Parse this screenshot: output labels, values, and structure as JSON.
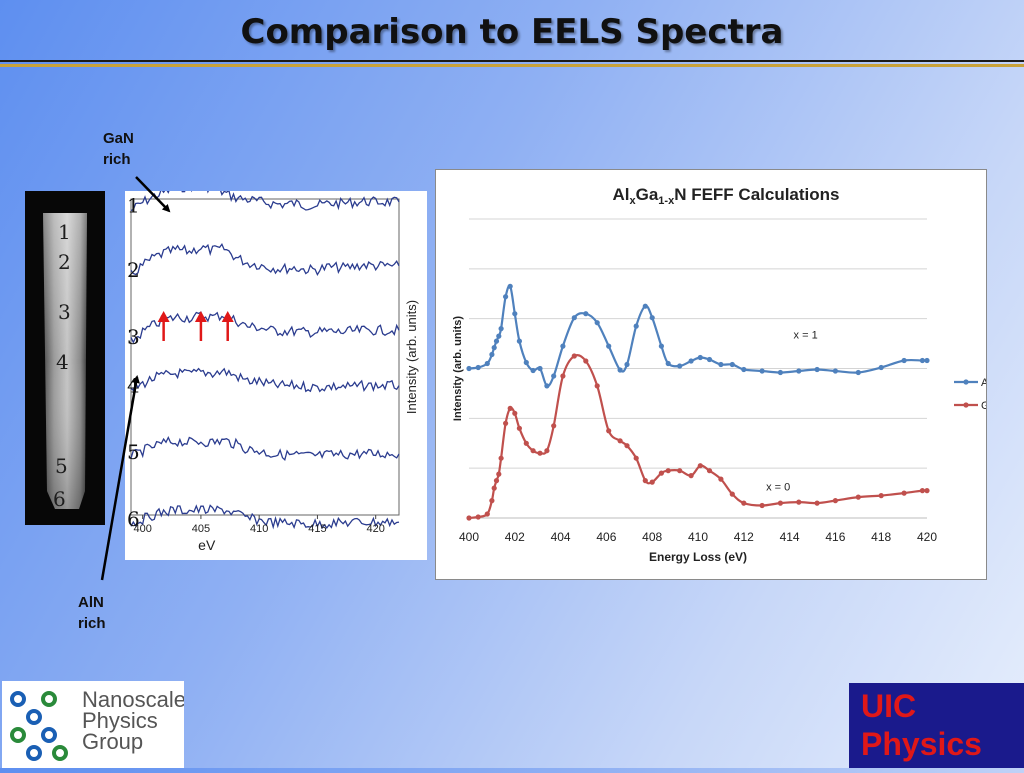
{
  "slide": {
    "title": "Comparison to EELS Spectra",
    "annotations": {
      "gan_rich": [
        "GaN",
        "rich"
      ],
      "aln_rich": [
        "AlN",
        "rich"
      ]
    }
  },
  "stem_image": {
    "region_labels": [
      "1",
      "2",
      "3",
      "4",
      "5",
      "6"
    ]
  },
  "chart_data": [
    {
      "type": "line",
      "title": "",
      "xlabel": "eV",
      "ylabel": "Intensity (arb. units)",
      "xlim": [
        399,
        422
      ],
      "x_ticks": [
        400,
        405,
        410,
        415,
        420
      ],
      "series": [
        {
          "name": "1",
          "x": [
            399,
            400,
            401,
            402,
            403,
            404,
            405,
            406,
            407,
            408,
            409,
            410,
            411,
            412,
            413,
            414,
            415,
            416,
            417,
            418,
            419,
            420,
            421,
            422
          ],
          "values": [
            0.55,
            0.72,
            0.85,
            0.95,
            1.02,
            1.06,
            1.08,
            1.02,
            0.92,
            0.82,
            0.78,
            0.74,
            0.7,
            0.68,
            0.7,
            0.66,
            0.66,
            0.7,
            0.7,
            0.72,
            0.74,
            0.73,
            0.73,
            0.73
          ]
        },
        {
          "name": "2",
          "x": [
            399,
            400,
            401,
            402,
            403,
            404,
            405,
            406,
            407,
            408,
            409,
            410,
            411,
            412,
            413,
            414,
            415,
            416,
            417,
            418,
            419,
            420,
            421,
            422
          ],
          "values": [
            0.25,
            0.45,
            0.62,
            0.72,
            0.78,
            0.74,
            0.82,
            0.76,
            0.8,
            0.62,
            0.5,
            0.46,
            0.4,
            0.38,
            0.4,
            0.36,
            0.36,
            0.42,
            0.4,
            0.42,
            0.46,
            0.44,
            0.44,
            0.44
          ]
        },
        {
          "name": "3",
          "x": [
            399,
            400,
            401,
            402,
            403,
            404,
            405,
            406,
            407,
            408,
            409,
            410,
            411,
            412,
            413,
            414,
            415,
            416,
            417,
            418,
            419,
            420,
            421,
            422
          ],
          "values": [
            -0.1,
            0.1,
            0.26,
            0.36,
            0.42,
            0.4,
            0.44,
            0.42,
            0.46,
            0.34,
            0.22,
            0.2,
            0.14,
            0.12,
            0.12,
            0.1,
            0.1,
            0.12,
            0.1,
            0.12,
            0.14,
            0.14,
            0.14,
            0.14
          ]
        },
        {
          "name": "4",
          "x": [
            399,
            400,
            401,
            402,
            403,
            404,
            405,
            406,
            407,
            408,
            409,
            410,
            411,
            412,
            413,
            414,
            415,
            416,
            417,
            418,
            419,
            420,
            421,
            422
          ],
          "values": [
            -0.28,
            -0.14,
            -0.02,
            0.04,
            0.08,
            0.06,
            0.1,
            0.08,
            0.12,
            0.02,
            -0.08,
            -0.1,
            -0.16,
            -0.18,
            -0.18,
            -0.2,
            -0.22,
            -0.2,
            -0.2,
            -0.2,
            -0.18,
            -0.18,
            -0.18,
            -0.18
          ]
        },
        {
          "name": "5",
          "x": [
            399,
            400,
            401,
            402,
            403,
            404,
            405,
            406,
            407,
            408,
            409,
            410,
            411,
            412,
            413,
            414,
            415,
            416,
            417,
            418,
            419,
            420,
            421,
            422
          ],
          "values": [
            -0.62,
            -0.5,
            -0.4,
            -0.32,
            -0.3,
            -0.32,
            -0.3,
            -0.32,
            -0.28,
            -0.36,
            -0.46,
            -0.5,
            -0.56,
            -0.58,
            -0.58,
            -0.6,
            -0.6,
            -0.58,
            -0.58,
            -0.56,
            -0.56,
            -0.56,
            -0.56,
            -0.56
          ]
        },
        {
          "name": "6",
          "x": [
            399,
            400,
            401,
            402,
            403,
            404,
            405,
            406,
            407,
            408,
            409,
            410,
            411,
            412,
            413,
            414,
            415,
            416,
            417,
            418,
            419,
            420,
            421,
            422
          ],
          "values": [
            -0.98,
            -0.88,
            -0.78,
            -0.72,
            -0.68,
            -0.7,
            -0.68,
            -0.7,
            -0.68,
            -0.76,
            -0.86,
            -0.9,
            -0.94,
            -0.96,
            -0.96,
            -0.98,
            -0.98,
            -0.96,
            -0.96,
            -0.94,
            -0.94,
            -0.94,
            -0.94,
            -0.94
          ]
        }
      ],
      "markers_at_eV": [
        401.8,
        405.0,
        407.3
      ]
    },
    {
      "type": "line",
      "title_parts": {
        "base": "Al",
        "sub1": "x",
        "mid": "Ga",
        "sub2": "1-x",
        "tail": "N FEFF Calculations"
      },
      "xlabel": "Energy Loss (eV)",
      "ylabel": "Intensity (arb. units)",
      "xlim": [
        400,
        420
      ],
      "ylim": [
        0,
        6
      ],
      "x_ticks": [
        "400",
        "402",
        "404",
        "406",
        "408",
        "410",
        "412",
        "414",
        "416",
        "418",
        "420"
      ],
      "grid": true,
      "legend_position": "right",
      "annotations": [
        {
          "text": "x = 1",
          "x": 414.7,
          "y": 3.6
        },
        {
          "text": "x = 0",
          "x": 413.5,
          "y": 0.55
        }
      ],
      "series": [
        {
          "name": "AlN",
          "color": "#4f81bd",
          "x": [
            400.0,
            400.4,
            400.8,
            401.0,
            401.1,
            401.2,
            401.3,
            401.4,
            401.6,
            401.8,
            402.0,
            402.2,
            402.5,
            402.8,
            403.1,
            403.4,
            403.7,
            404.1,
            404.6,
            405.1,
            405.6,
            406.1,
            406.6,
            406.9,
            407.3,
            407.7,
            408.0,
            408.4,
            408.7,
            409.2,
            409.7,
            410.1,
            410.5,
            411.0,
            411.5,
            412.0,
            412.8,
            413.6,
            414.4,
            415.2,
            416.0,
            417.0,
            418.0,
            419.0,
            419.8,
            420.0
          ],
          "values": [
            3.0,
            3.02,
            3.1,
            3.28,
            3.42,
            3.55,
            3.65,
            3.8,
            4.44,
            4.65,
            4.1,
            3.55,
            3.12,
            2.96,
            3.0,
            2.65,
            2.85,
            3.45,
            4.02,
            4.1,
            3.92,
            3.45,
            2.97,
            3.08,
            3.85,
            4.25,
            4.02,
            3.45,
            3.1,
            3.05,
            3.15,
            3.22,
            3.18,
            3.08,
            3.08,
            2.98,
            2.95,
            2.92,
            2.95,
            2.98,
            2.95,
            2.92,
            3.02,
            3.16,
            3.16,
            3.16
          ]
        },
        {
          "name": "GaN",
          "color": "#c0504d",
          "x": [
            400.0,
            400.4,
            400.8,
            401.0,
            401.1,
            401.2,
            401.3,
            401.4,
            401.6,
            401.8,
            402.0,
            402.2,
            402.5,
            402.8,
            403.1,
            403.4,
            403.7,
            404.1,
            404.6,
            405.1,
            405.6,
            406.1,
            406.6,
            406.9,
            407.3,
            407.7,
            408.0,
            408.4,
            408.7,
            409.2,
            409.7,
            410.1,
            410.5,
            411.0,
            411.5,
            412.0,
            412.8,
            413.6,
            414.4,
            415.2,
            416.0,
            417.0,
            418.0,
            419.0,
            419.8,
            420.0
          ],
          "values": [
            0.0,
            0.02,
            0.08,
            0.35,
            0.6,
            0.75,
            0.88,
            1.2,
            1.9,
            2.2,
            2.1,
            1.8,
            1.5,
            1.35,
            1.3,
            1.35,
            1.85,
            2.85,
            3.25,
            3.15,
            2.65,
            1.75,
            1.55,
            1.45,
            1.2,
            0.75,
            0.72,
            0.9,
            0.95,
            0.95,
            0.85,
            1.05,
            0.95,
            0.78,
            0.48,
            0.3,
            0.25,
            0.3,
            0.32,
            0.3,
            0.35,
            0.42,
            0.45,
            0.5,
            0.55,
            0.55
          ]
        }
      ]
    }
  ],
  "logos": {
    "nanoscale": [
      "Nanoscale",
      "Physics",
      "Group"
    ],
    "uic": [
      "UIC",
      "Physics"
    ]
  }
}
